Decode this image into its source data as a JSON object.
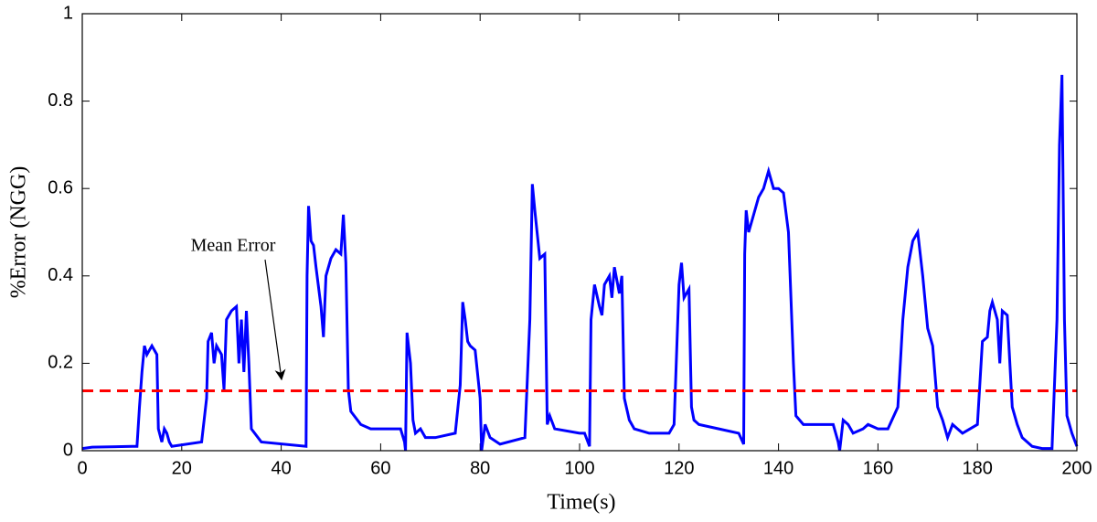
{
  "chart_data": {
    "type": "line",
    "xlabel": "Time(s)",
    "ylabel": "%Error (NGG)",
    "annotation": "Mean Error",
    "xlim": [
      0,
      200
    ],
    "xticks": [
      0,
      20,
      40,
      60,
      80,
      100,
      120,
      140,
      160,
      180,
      200
    ],
    "ylim": [
      0,
      1
    ],
    "yticks": [
      0,
      0.2,
      0.4,
      0.6,
      0.8,
      1
    ],
    "grid": false,
    "mean_error": {
      "value": 0.137,
      "color": "#ff0000"
    },
    "series": [
      {
        "name": "%Error",
        "color": "#0000ff",
        "x": [
          0,
          2,
          10,
          11,
          11.5,
          12,
          12.5,
          13,
          13.5,
          14,
          15,
          15.3,
          16,
          16.5,
          17,
          17.5,
          18,
          24,
          25,
          25.3,
          26,
          26.5,
          27,
          28,
          28.5,
          29,
          30,
          31,
          31.5,
          32,
          32.5,
          33,
          33.5,
          34,
          36,
          45,
          45.2,
          45.5,
          46,
          46.5,
          47,
          48,
          48.5,
          49,
          50,
          51,
          52,
          52.5,
          53,
          53.5,
          54,
          56,
          58,
          64,
          64.8,
          65,
          65.3,
          66,
          66.5,
          67,
          68,
          69,
          71,
          75,
          76,
          76.5,
          77,
          77.5,
          78,
          79,
          80,
          80.3,
          81,
          82,
          84,
          89,
          90,
          90.5,
          91,
          92,
          93,
          93.5,
          94,
          95,
          100,
          101,
          102,
          102.3,
          103,
          104,
          104.5,
          105,
          106,
          106.5,
          107,
          108,
          108.5,
          109,
          110,
          111,
          114,
          118,
          119,
          120,
          120.5,
          121,
          122,
          122.5,
          123,
          124,
          128,
          132,
          133,
          133.2,
          133.5,
          134,
          135,
          136,
          137,
          138,
          139,
          140,
          141,
          142,
          143,
          143.5,
          145,
          150,
          151,
          152,
          152.3,
          153,
          154,
          155,
          157,
          158,
          160,
          162,
          164,
          165,
          166,
          167,
          168,
          169,
          170,
          171,
          172,
          173,
          174,
          175,
          177,
          180,
          181,
          182,
          182.5,
          183,
          184,
          184.5,
          185,
          186,
          187,
          188,
          189,
          191,
          193,
          195,
          196,
          196.5,
          197,
          197.5,
          198,
          199,
          200
        ],
        "values": [
          0.005,
          0.008,
          0.01,
          0.01,
          0.1,
          0.18,
          0.24,
          0.22,
          0.23,
          0.24,
          0.22,
          0.05,
          0.02,
          0.05,
          0.04,
          0.02,
          0.01,
          0.02,
          0.12,
          0.25,
          0.27,
          0.2,
          0.24,
          0.22,
          0.14,
          0.3,
          0.32,
          0.33,
          0.2,
          0.3,
          0.18,
          0.32,
          0.2,
          0.05,
          0.02,
          0.01,
          0.4,
          0.56,
          0.48,
          0.47,
          0.42,
          0.33,
          0.26,
          0.4,
          0.44,
          0.46,
          0.45,
          0.54,
          0.43,
          0.14,
          0.09,
          0.06,
          0.05,
          0.05,
          0.02,
          0.0,
          0.27,
          0.2,
          0.07,
          0.04,
          0.05,
          0.03,
          0.03,
          0.04,
          0.15,
          0.34,
          0.3,
          0.25,
          0.24,
          0.23,
          0.12,
          0.0,
          0.06,
          0.03,
          0.015,
          0.03,
          0.3,
          0.61,
          0.55,
          0.44,
          0.45,
          0.06,
          0.08,
          0.05,
          0.04,
          0.04,
          0.01,
          0.3,
          0.38,
          0.33,
          0.31,
          0.38,
          0.4,
          0.35,
          0.42,
          0.36,
          0.4,
          0.12,
          0.07,
          0.05,
          0.04,
          0.04,
          0.06,
          0.38,
          0.43,
          0.35,
          0.37,
          0.1,
          0.07,
          0.06,
          0.05,
          0.04,
          0.015,
          0.45,
          0.55,
          0.5,
          0.54,
          0.58,
          0.6,
          0.64,
          0.6,
          0.6,
          0.59,
          0.5,
          0.2,
          0.08,
          0.06,
          0.06,
          0.06,
          0.02,
          0.0,
          0.07,
          0.06,
          0.04,
          0.05,
          0.06,
          0.05,
          0.05,
          0.1,
          0.3,
          0.42,
          0.48,
          0.5,
          0.4,
          0.28,
          0.24,
          0.1,
          0.07,
          0.03,
          0.06,
          0.04,
          0.06,
          0.25,
          0.26,
          0.32,
          0.34,
          0.3,
          0.2,
          0.32,
          0.31,
          0.1,
          0.06,
          0.03,
          0.01,
          0.005,
          0.005,
          0.3,
          0.7,
          0.86,
          0.3,
          0.08,
          0.04,
          0.01
        ]
      }
    ]
  }
}
